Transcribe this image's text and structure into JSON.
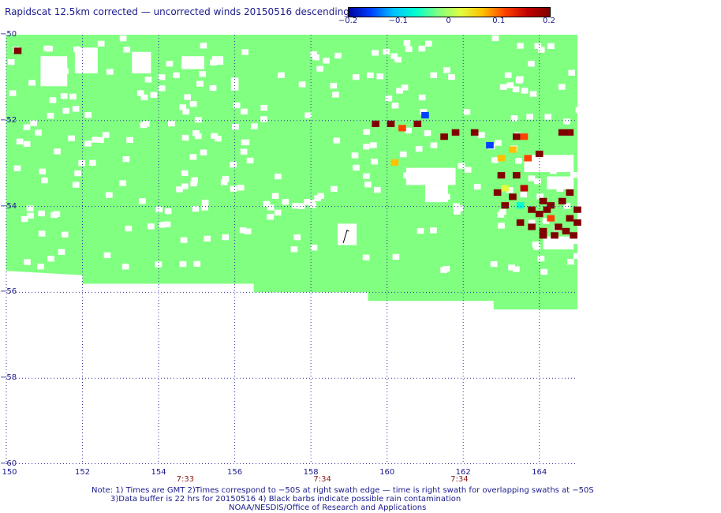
{
  "title": "Rapidscat 12.5km corrected — uncorrected winds 20150516 descending",
  "colorbar": {
    "labels": [
      "−0.2",
      "−0.1",
      "0",
      "0.1",
      "0.2"
    ],
    "range": [
      -0.2,
      0.2
    ],
    "colors": [
      "#0000a0",
      "#0040ff",
      "#00c0ff",
      "#00ffd0",
      "#80ff80",
      "#e0ff40",
      "#ffc000",
      "#ff4000",
      "#c00000",
      "#800000"
    ]
  },
  "map": {
    "lon_range": [
      150,
      165
    ],
    "lat_range": [
      -60,
      -50
    ],
    "lon_ticks": [
      "150",
      "152",
      "154",
      "156",
      "158",
      "160",
      "162",
      "164"
    ],
    "lat_ticks": [
      "−50",
      "−52",
      "−54",
      "−56",
      "−58",
      "−60"
    ],
    "time_labels": [
      {
        "lon": 154.7,
        "text": "7:33"
      },
      {
        "lon": 158.3,
        "text": "7:34"
      },
      {
        "lon": 161.9,
        "text": "7:34"
      }
    ],
    "grid": "dotted",
    "swath_color": "#80ff80",
    "coverage": {
      "description_values": {
        "south_edge_lat_west": -55.5,
        "south_edge_lat_east": -56.4
      }
    },
    "highlights": [
      {
        "lon": 150.2,
        "lat": -50.3,
        "val": 0.2
      },
      {
        "lon": 159.6,
        "lat": -52.0,
        "val": 0.2
      },
      {
        "lon": 160.0,
        "lat": -52.0,
        "val": 0.2
      },
      {
        "lon": 160.3,
        "lat": -52.1,
        "val": 0.13
      },
      {
        "lon": 160.7,
        "lat": -52.0,
        "val": 0.2
      },
      {
        "lon": 160.9,
        "lat": -51.8,
        "val": -0.15
      },
      {
        "lon": 161.4,
        "lat": -52.3,
        "val": 0.2
      },
      {
        "lon": 161.7,
        "lat": -52.2,
        "val": 0.2
      },
      {
        "lon": 162.2,
        "lat": -52.2,
        "val": 0.2
      },
      {
        "lon": 162.6,
        "lat": -52.5,
        "val": -0.15
      },
      {
        "lon": 163.3,
        "lat": -52.3,
        "val": 0.2
      },
      {
        "lon": 163.5,
        "lat": -52.3,
        "val": 0.12
      },
      {
        "lon": 164.5,
        "lat": -52.2,
        "val": 0.2
      },
      {
        "lon": 164.7,
        "lat": -52.2,
        "val": 0.2
      },
      {
        "lon": 160.1,
        "lat": -52.9,
        "val": 0.07
      },
      {
        "lon": 162.9,
        "lat": -52.8,
        "val": 0.05
      },
      {
        "lon": 163.2,
        "lat": -52.6,
        "val": 0.06
      },
      {
        "lon": 163.6,
        "lat": -52.8,
        "val": 0.1
      },
      {
        "lon": 163.9,
        "lat": -52.7,
        "val": 0.2
      },
      {
        "lon": 162.9,
        "lat": -53.2,
        "val": 0.2
      },
      {
        "lon": 163.3,
        "lat": -53.2,
        "val": 0.2
      },
      {
        "lon": 163.0,
        "lat": -53.5,
        "val": 0.0
      },
      {
        "lon": 163.5,
        "lat": -53.5,
        "val": 0.15
      },
      {
        "lon": 163.2,
        "lat": -53.7,
        "val": 0.2
      },
      {
        "lon": 163.4,
        "lat": -53.9,
        "val": -0.05
      },
      {
        "lon": 163.0,
        "lat": -53.9,
        "val": 0.2
      },
      {
        "lon": 162.8,
        "lat": -53.6,
        "val": 0.2
      },
      {
        "lon": 163.7,
        "lat": -54.0,
        "val": 0.2
      },
      {
        "lon": 164.0,
        "lat": -53.8,
        "val": 0.2
      },
      {
        "lon": 164.2,
        "lat": -53.9,
        "val": 0.2
      },
      {
        "lon": 164.5,
        "lat": -53.8,
        "val": 0.2
      },
      {
        "lon": 164.7,
        "lat": -53.6,
        "val": 0.2
      },
      {
        "lon": 164.9,
        "lat": -54.0,
        "val": 0.2
      },
      {
        "lon": 164.2,
        "lat": -54.2,
        "val": 0.13
      },
      {
        "lon": 163.4,
        "lat": -54.3,
        "val": 0.2
      },
      {
        "lon": 163.7,
        "lat": -54.4,
        "val": 0.2
      },
      {
        "lon": 164.0,
        "lat": -54.5,
        "val": 0.2
      },
      {
        "lon": 164.4,
        "lat": -54.4,
        "val": 0.2
      },
      {
        "lon": 164.6,
        "lat": -54.5,
        "val": 0.2
      },
      {
        "lon": 164.8,
        "lat": -54.6,
        "val": 0.2
      },
      {
        "lon": 164.0,
        "lat": -54.6,
        "val": 0.2
      },
      {
        "lon": 164.3,
        "lat": -54.6,
        "val": 0.2
      },
      {
        "lon": 163.9,
        "lat": -54.1,
        "val": 0.2
      },
      {
        "lon": 164.1,
        "lat": -54.0,
        "val": 0.2
      },
      {
        "lon": 164.7,
        "lat": -54.2,
        "val": 0.2
      },
      {
        "lon": 164.9,
        "lat": -54.3,
        "val": 0.2
      }
    ],
    "white_patches": [
      {
        "lon": [
          150.9,
          151.6
        ],
        "lat": [
          -50.5,
          -51.2
        ]
      },
      {
        "lon": [
          151.8,
          152.4
        ],
        "lat": [
          -50.3,
          -50.9
        ]
      },
      {
        "lon": [
          153.3,
          153.8
        ],
        "lat": [
          -50.4,
          -50.9
        ]
      },
      {
        "lon": [
          154.6,
          155.2
        ],
        "lat": [
          -50.5,
          -50.8
        ]
      },
      {
        "lon": [
          155.4,
          155.7
        ],
        "lat": [
          -50.5,
          -50.7
        ]
      },
      {
        "lon": [
          155.9,
          156.1
        ],
        "lat": [
          -51.0,
          -51.3
        ]
      },
      {
        "lon": [
          160.5,
          161.8
        ],
        "lat": [
          -53.1,
          -53.5
        ]
      },
      {
        "lon": [
          161.0,
          161.6
        ],
        "lat": [
          -53.5,
          -53.9
        ]
      },
      {
        "lon": [
          163.6,
          164.9
        ],
        "lat": [
          -52.8,
          -53.2
        ]
      },
      {
        "lon": [
          164.2,
          164.9
        ],
        "lat": [
          -53.3,
          -53.6
        ]
      },
      {
        "lon": [
          164.1,
          164.9
        ],
        "lat": [
          -54.7,
          -55.0
        ]
      },
      {
        "lon": [
          158.7,
          159.2
        ],
        "lat": [
          -54.4,
          -54.9
        ]
      }
    ]
  },
  "notes": [
    "Note: 1) Times are GMT 2)Times correspond to −50S at right swath edge — time is right swath for overlapping swaths at −50S",
    "3)Data buffer is 22 hrs for 20150516 4) Black barbs indicate possible rain contamination",
    "NOAA/NESDIS/Office of Research and Applications"
  ]
}
